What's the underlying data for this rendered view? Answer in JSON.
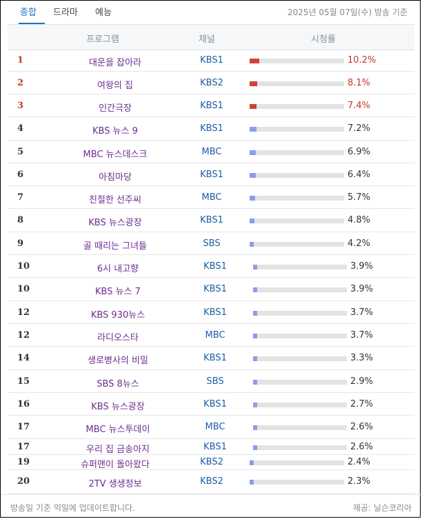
{
  "tabs": [
    {
      "label": "종합",
      "active": true
    },
    {
      "label": "드라마",
      "active": false
    },
    {
      "label": "예능",
      "active": false
    }
  ],
  "date_note": "2025년 05월 07일(수) 방송 기준",
  "columns": {
    "program": "프로그램",
    "channel": "채널",
    "rating": "시청률"
  },
  "colors": {
    "accent": "#1a73c8",
    "top_bar": "#d0413a",
    "bar": "#8c9bf0",
    "program_text": "#6b2d8f",
    "channel_text": "#1a5ca8"
  },
  "rows": [
    {
      "rank": "1",
      "program": "대운을 잡아라",
      "channel": "KBS1",
      "rating": 10.2,
      "rating_text": "10.2%"
    },
    {
      "rank": "2",
      "program": "여왕의 집",
      "channel": "KBS2",
      "rating": 8.1,
      "rating_text": "8.1%"
    },
    {
      "rank": "3",
      "program": "인간극장",
      "channel": "KBS1",
      "rating": 7.4,
      "rating_text": "7.4%"
    },
    {
      "rank": "4",
      "program": "KBS 뉴스 9",
      "channel": "KBS1",
      "rating": 7.2,
      "rating_text": "7.2%"
    },
    {
      "rank": "5",
      "program": "MBC 뉴스데스크",
      "channel": "MBC",
      "rating": 6.9,
      "rating_text": "6.9%"
    },
    {
      "rank": "6",
      "program": "아침마당",
      "channel": "KBS1",
      "rating": 6.4,
      "rating_text": "6.4%"
    },
    {
      "rank": "7",
      "program": "친절한 선주씨",
      "channel": "MBC",
      "rating": 5.7,
      "rating_text": "5.7%"
    },
    {
      "rank": "8",
      "program": "KBS 뉴스광장",
      "channel": "KBS1",
      "rating": 4.8,
      "rating_text": "4.8%"
    },
    {
      "rank": "9",
      "program": "골 때리는 그녀들",
      "channel": "SBS",
      "rating": 4.2,
      "rating_text": "4.2%"
    },
    {
      "rank": "10",
      "program": "6시 내고향",
      "channel": "KBS1",
      "rating": 3.9,
      "rating_text": "3.9%"
    },
    {
      "rank": "10",
      "program": "KBS 뉴스 7",
      "channel": "KBS1",
      "rating": 3.9,
      "rating_text": "3.9%"
    },
    {
      "rank": "12",
      "program": "KBS 930뉴스",
      "channel": "KBS1",
      "rating": 3.7,
      "rating_text": "3.7%"
    },
    {
      "rank": "12",
      "program": "라디오스타",
      "channel": "MBC",
      "rating": 3.7,
      "rating_text": "3.7%"
    },
    {
      "rank": "14",
      "program": "생로병사의 비밀",
      "channel": "KBS1",
      "rating": 3.3,
      "rating_text": "3.3%"
    },
    {
      "rank": "15",
      "program": "SBS 8뉴스",
      "channel": "SBS",
      "rating": 2.9,
      "rating_text": "2.9%"
    },
    {
      "rank": "16",
      "program": "KBS 뉴스광장",
      "channel": "KBS1",
      "rating": 2.7,
      "rating_text": "2.7%"
    },
    {
      "rank": "17",
      "program": "MBC 뉴스투데이",
      "channel": "MBC",
      "rating": 2.6,
      "rating_text": "2.6%"
    },
    {
      "rank": "17",
      "program": "우리 집 금송아지",
      "channel": "KBS1",
      "rating": 2.6,
      "rating_text": "2.6%"
    },
    {
      "rank": "19",
      "program": "슈퍼맨이 돌아왔다",
      "channel": "KBS2",
      "rating": 2.4,
      "rating_text": "2.4%"
    },
    {
      "rank": "20",
      "program": "2TV 생생정보",
      "channel": "KBS2",
      "rating": 2.3,
      "rating_text": "2.3%"
    }
  ],
  "footer": {
    "left": "방송일 기준 익일에 업데이트합니다.",
    "right": "제공:  닐슨코리아"
  }
}
